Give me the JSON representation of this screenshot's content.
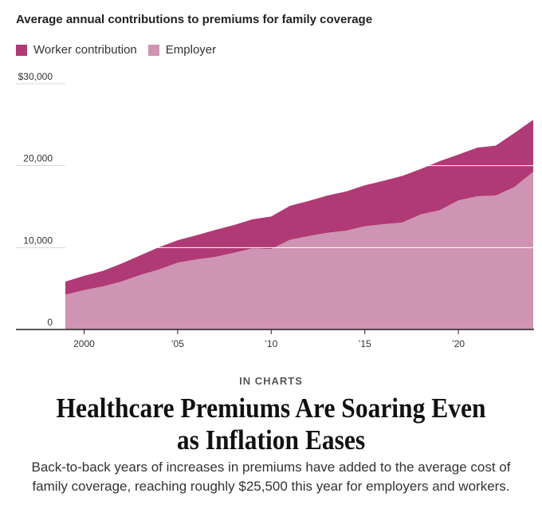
{
  "chart_data": {
    "type": "area",
    "stacked": true,
    "title": "Average annual contributions to premiums for family coverage",
    "x": [
      1999,
      2000,
      2001,
      2002,
      2003,
      2004,
      2005,
      2006,
      2007,
      2008,
      2009,
      2010,
      2011,
      2012,
      2013,
      2014,
      2015,
      2016,
      2017,
      2018,
      2019,
      2020,
      2021,
      2022,
      2023,
      2024
    ],
    "series": [
      {
        "name": "Employer",
        "color": "#cf94b3",
        "values": [
          4250,
          4800,
          5250,
          5850,
          6650,
          7300,
          8150,
          8550,
          8850,
          9350,
          9900,
          9800,
          10950,
          11400,
          11800,
          12050,
          12600,
          12850,
          13050,
          14050,
          14550,
          15750,
          16250,
          16350,
          17400,
          19250
        ]
      },
      {
        "name": "Worker contribution",
        "color": "#b03a75",
        "values": [
          1600,
          1750,
          1900,
          2200,
          2400,
          2750,
          2750,
          2950,
          3300,
          3400,
          3550,
          4000,
          4150,
          4300,
          4550,
          4800,
          5000,
          5300,
          5700,
          5550,
          6000,
          5600,
          5950,
          6100,
          6600,
          6350
        ]
      }
    ],
    "xticks": [
      {
        "value": 2000,
        "label": "2000"
      },
      {
        "value": 2005,
        "label": "’05"
      },
      {
        "value": 2010,
        "label": "’10"
      },
      {
        "value": 2015,
        "label": "’15"
      },
      {
        "value": 2020,
        "label": "’20"
      }
    ],
    "yticks": [
      {
        "value": 0,
        "label": "0"
      },
      {
        "value": 10000,
        "label": "10,000"
      },
      {
        "value": 20000,
        "label": "20,000"
      },
      {
        "value": 30000,
        "label": "$30,000"
      }
    ],
    "ylim": [
      0,
      30000
    ],
    "xlim": [
      1999,
      2024
    ],
    "grid": true,
    "legend_position": "top-left"
  },
  "legend": {
    "worker_label": "Worker contribution",
    "employer_label": "Employer",
    "worker_color": "#b03a75",
    "employer_color": "#cf94b3"
  },
  "article": {
    "kicker": "IN CHARTS",
    "headline": "Healthcare Premiums Are Soaring Even as Inflation Eases",
    "dek": "Back-to-back years of increases in premiums have added to the average cost of family coverage, reaching roughly $25,500 this year for employers and workers."
  }
}
